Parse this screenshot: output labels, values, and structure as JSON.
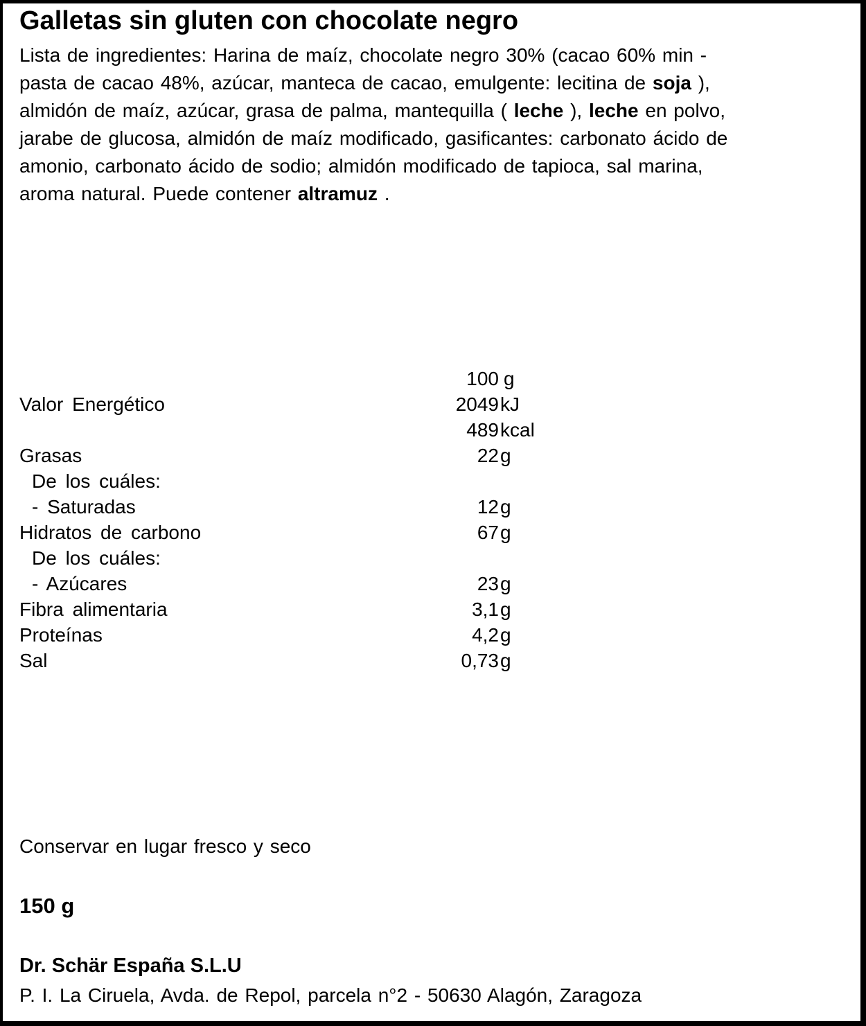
{
  "product": {
    "title": "Galletas sin gluten con chocolate negro"
  },
  "ingredients": {
    "lines": [
      [
        {
          "t": "Lista de ingredientes: Harina de maíz, chocolate negro 30% (cacao 60% min -",
          "b": false
        }
      ],
      [
        {
          "t": "pasta de cacao 48%, azúcar, manteca de cacao, emulgente: lecitina de ",
          "b": false
        },
        {
          "t": "soja",
          "b": true
        },
        {
          "t": " ),",
          "b": false
        }
      ],
      [
        {
          "t": "almidón de maíz, azúcar, grasa de palma, mantequilla ( ",
          "b": false
        },
        {
          "t": "leche",
          "b": true
        },
        {
          "t": " ), ",
          "b": false
        },
        {
          "t": "leche",
          "b": true
        },
        {
          "t": " en polvo,",
          "b": false
        }
      ],
      [
        {
          "t": "jarabe de glucosa, almidón de maíz modificado, gasificantes: carbonato ácido de",
          "b": false
        }
      ],
      [
        {
          "t": "amonio, carbonato ácido de sodio; almidón modificado de tapioca, sal marina,",
          "b": false
        }
      ],
      [
        {
          "t": "aroma natural. Puede contener ",
          "b": false
        },
        {
          "t": "altramuz",
          "b": true
        },
        {
          "t": " .",
          "b": false
        }
      ]
    ]
  },
  "nutrition": {
    "header": {
      "value": "100",
      "unit": "g"
    },
    "rows": [
      {
        "label": "Valor Energético",
        "indent": 0,
        "value": "2049",
        "unit": "kJ"
      },
      {
        "label": "",
        "indent": 0,
        "value": "489",
        "unit": "kcal"
      },
      {
        "label": "Grasas",
        "indent": 0,
        "value": "22",
        "unit": "g"
      },
      {
        "label": "De los cuáles:",
        "indent": 1,
        "value": "",
        "unit": ""
      },
      {
        "label": "- Saturadas",
        "indent": 1,
        "value": "12",
        "unit": "g"
      },
      {
        "label": "Hidratos de carbono",
        "indent": 0,
        "value": "67",
        "unit": "g"
      },
      {
        "label": "De los cuáles:",
        "indent": 1,
        "value": "",
        "unit": ""
      },
      {
        "label": "- Azúcares",
        "indent": 1,
        "value": "23",
        "unit": "g"
      },
      {
        "label": "Fibra alimentaria",
        "indent": 0,
        "value": "3,1",
        "unit": "g"
      },
      {
        "label": "Proteínas",
        "indent": 0,
        "value": "4,2",
        "unit": "g"
      },
      {
        "label": "Sal",
        "indent": 0,
        "value": "0,73",
        "unit": "g"
      }
    ]
  },
  "storage": {
    "text": "Conservar en lugar fresco y seco"
  },
  "net_weight": {
    "text": "150 g"
  },
  "manufacturer": {
    "name": "Dr. Schär España S.L.U",
    "address": "P. I. La Ciruela, Avda. de Repol, parcela n°2 - 50630 Alagón, Zaragoza"
  },
  "colors": {
    "text": "#000000",
    "background": "#ffffff",
    "border": "#000000"
  }
}
